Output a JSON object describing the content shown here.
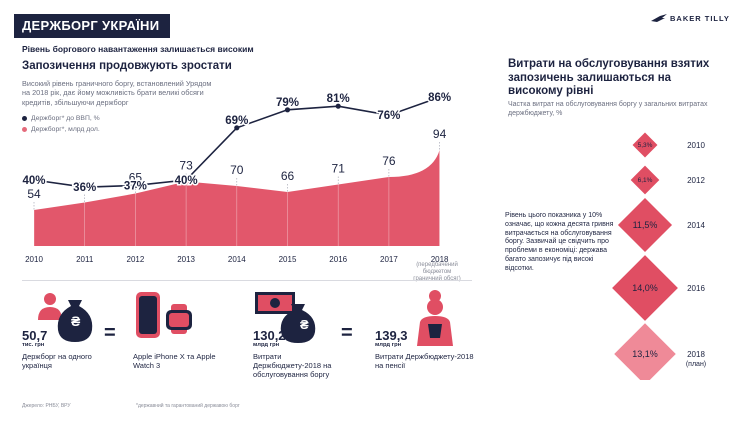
{
  "header": {
    "title": "ДЕРЖБОРГ УКРАЇНИ",
    "subtitle": "Рівень боргового навантаження залишається високим",
    "logo_text": "BAKER TILLY"
  },
  "left_section": {
    "title": "Запозичення продовжують зростати",
    "description": "Високий рівень граничного боргу, встановлений Урядом на 2018 рік, дає йому можливість брати великі обсяги кредитів, збільшуючи держборг",
    "legend": [
      {
        "label": "Держборг* до ВВП, %",
        "color": "#1d2340"
      },
      {
        "label": "Держборг*, млрд дол.",
        "color": "#e46a7b"
      }
    ],
    "x_note": "(передбачений бюджетом граничний обсяг)"
  },
  "chart_data": {
    "type": "area",
    "categories": [
      "2010",
      "2011",
      "2012",
      "2013",
      "2014",
      "2015",
      "2016",
      "2017",
      "2018"
    ],
    "series": [
      {
        "name": "Держборг* до ВВП, %",
        "type": "line",
        "values": [
          40,
          36,
          37,
          40,
          69,
          79,
          81,
          76,
          86
        ],
        "labels": [
          "40%",
          "36%",
          "37%",
          "40%",
          "69%",
          "79%",
          "81%",
          "76%",
          "86%"
        ]
      },
      {
        "name": "Держборг*, млрд дол.",
        "type": "area",
        "values": [
          54,
          59,
          65,
          73,
          70,
          66,
          71,
          76,
          94
        ],
        "labels": [
          "54",
          "59",
          "65",
          "73",
          "70",
          "66",
          "71",
          "76",
          "94"
        ]
      }
    ],
    "colors": {
      "area": "#e04e63",
      "line": "#1d2340"
    }
  },
  "right_section": {
    "title": "Витрати на обслуговування взятих запозичень залишаються на високому рівні",
    "description": "Частка витрат на обслуговування боргу у загальних витратах держбюджету, %",
    "note": "Рівень цього показника у 10% означає, що кожна десята гривня витрачається на обслуговування боргу. Зазвичай це свідчить про проблеми в економіці: держава багато запозичує під високі відсотки.",
    "items": [
      {
        "value": "5,3%",
        "year": "2010",
        "size": 5.3
      },
      {
        "value": "6,1%",
        "year": "2012",
        "size": 6.1
      },
      {
        "value": "11,5%",
        "year": "2014",
        "size": 11.5
      },
      {
        "value": "14,0%",
        "year": "2016",
        "size": 14.0
      },
      {
        "value": "13,1%",
        "year": "2018",
        "year_note": "(план)",
        "size": 13.1
      }
    ]
  },
  "bottom": {
    "item1": {
      "value": "50,7",
      "unit": "тис. грн",
      "caption": "Держборг на одного українця"
    },
    "item2": {
      "caption": "Apple iPhone X та Apple Watch 3"
    },
    "item3": {
      "value": "130,2",
      "unit": "млрд грн",
      "caption": "Витрати Держбюджету-2018 на обслуговування боргу"
    },
    "item4": {
      "value": "139,3",
      "unit": "млрд грн",
      "caption": "Витрати Держбюджету-2018 на пенсії"
    },
    "currency_symbol": "₴",
    "equals": "="
  },
  "footer": {
    "source": "Джерело: РНБУ, ВРУ",
    "note": "*державний та гарантований державою борг"
  }
}
